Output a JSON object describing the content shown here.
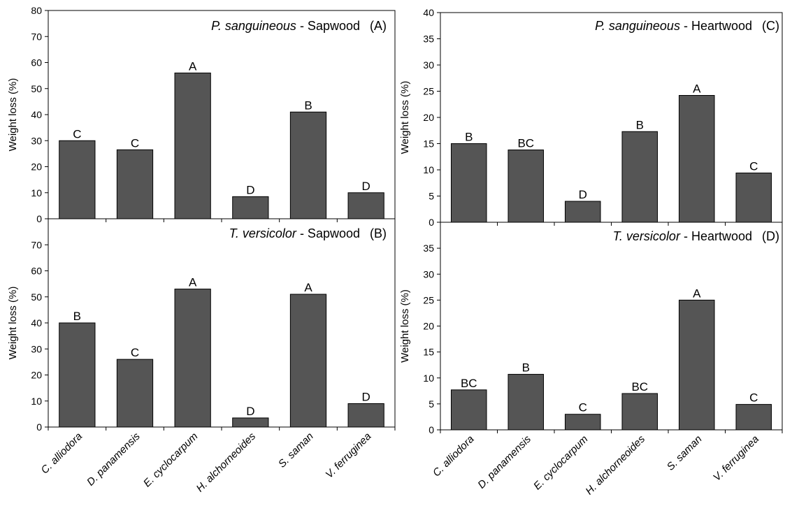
{
  "colors": {
    "bar": "#555555",
    "axis": "#000000",
    "background": "#ffffff"
  },
  "chart_data": [
    {
      "id": "A",
      "type": "bar",
      "title_species": "P. sanguineous",
      "title_rest": " - Sapwood",
      "panel_label": "(A)",
      "ylabel": "Weight loss (%)",
      "xlabel": "",
      "ylim": [
        0,
        80
      ],
      "yticks": [
        0,
        10,
        20,
        30,
        40,
        50,
        60,
        70,
        80
      ],
      "categories": [
        "C. alliodora",
        "D. panamensis",
        "E. cyclocarpum",
        "H. alchorneoides",
        "S. saman",
        "V. ferruginea"
      ],
      "values": [
        30,
        26.5,
        56,
        8.5,
        41,
        10
      ],
      "letters": [
        "C",
        "C",
        "A",
        "D",
        "B",
        "D"
      ],
      "grid": false,
      "show_categories": false
    },
    {
      "id": "B",
      "type": "bar",
      "title_species": "T. versicolor",
      "title_rest": " - Sapwood",
      "panel_label": "(B)",
      "ylabel": "Weight loss (%)",
      "xlabel": "",
      "ylim": [
        0,
        80
      ],
      "yticks": [
        0,
        10,
        20,
        30,
        40,
        50,
        60,
        70
      ],
      "categories": [
        "C. alliodora",
        "D. panamensis",
        "E. cyclocarpum",
        "H. alchorneoides",
        "S. saman",
        "V. ferruginea"
      ],
      "values": [
        40,
        26,
        53,
        3.5,
        51,
        9
      ],
      "letters": [
        "B",
        "C",
        "A",
        "D",
        "A",
        "D"
      ],
      "grid": false,
      "show_categories": true
    },
    {
      "id": "C",
      "type": "bar",
      "title_species": "P. sanguineous",
      "title_rest": " - Heartwood",
      "panel_label": "(C)",
      "ylabel": "Weight loss (%)",
      "xlabel": "",
      "ylim": [
        0,
        40
      ],
      "yticks": [
        0,
        5,
        10,
        15,
        20,
        25,
        30,
        35,
        40
      ],
      "categories": [
        "C. alliodora",
        "D. panamensis",
        "E. cyclocarpum",
        "H. alchorneoides",
        "S. saman",
        "V. ferruginea"
      ],
      "values": [
        15,
        13.8,
        4,
        17.3,
        24.2,
        9.4
      ],
      "letters": [
        "B",
        "BC",
        "D",
        "B",
        "A",
        "C"
      ],
      "grid": false,
      "show_categories": false
    },
    {
      "id": "D",
      "type": "bar",
      "title_species": "T. versicolor",
      "title_rest": " - Heartwood",
      "panel_label": "(D)",
      "ylabel": "Weight loss (%)",
      "xlabel": "",
      "ylim": [
        0,
        40
      ],
      "yticks": [
        0,
        5,
        10,
        15,
        20,
        25,
        30,
        35
      ],
      "categories": [
        "C. alliodora",
        "D. panamensis",
        "E. cyclocarpum",
        "H. alchorneoides",
        "S. saman",
        "V. ferruginea"
      ],
      "values": [
        7.7,
        10.7,
        3,
        7,
        25,
        4.9
      ],
      "letters": [
        "BC",
        "B",
        "C",
        "BC",
        "A",
        "C"
      ],
      "grid": false,
      "show_categories": true
    }
  ]
}
